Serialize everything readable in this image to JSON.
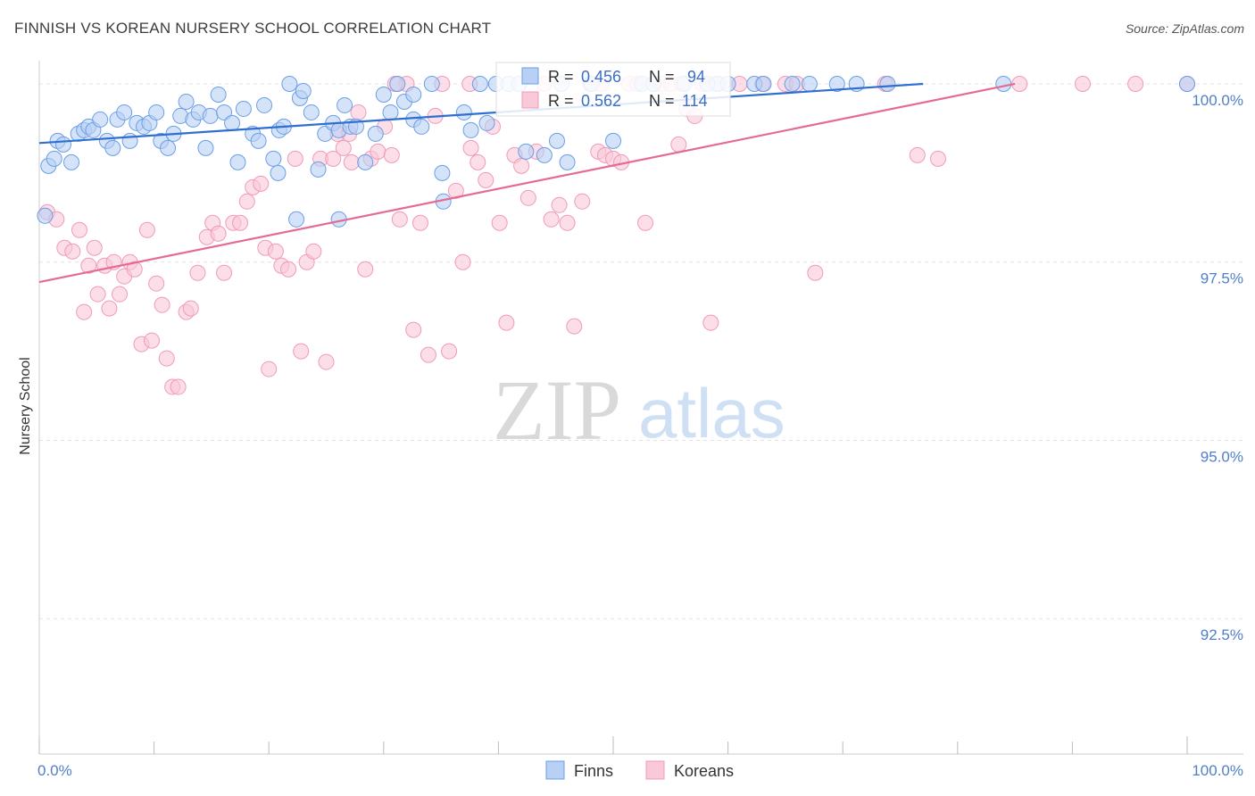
{
  "header": {
    "title": "FINNISH VS KOREAN NURSERY SCHOOL CORRELATION CHART",
    "source": "Source: ZipAtlas.com"
  },
  "watermark": {
    "zip": "ZIP",
    "atlas": "atlas"
  },
  "colors": {
    "finns": "#6a9ee8",
    "finns_line": "#2f6fd1",
    "koreans": "#f19ab8",
    "koreans_line": "#e56a94",
    "grid": "#e3e3e3",
    "axis_label": "#4f7fc9"
  },
  "chart_data": {
    "type": "scatter",
    "title": "FINNISH VS KOREAN NURSERY SCHOOL CORRELATION CHART",
    "xlabel": "",
    "ylabel": "Nursery School",
    "xlim": [
      0,
      100
    ],
    "ylim": [
      90.6,
      100.2
    ],
    "x_tick_labels": [
      "0.0%",
      "100.0%"
    ],
    "y_ticks": [
      {
        "value": 100.0,
        "label": "100.0%"
      },
      {
        "value": 97.5,
        "label": "97.5%"
      },
      {
        "value": 95.0,
        "label": "95.0%"
      },
      {
        "value": 92.5,
        "label": "92.5%"
      }
    ],
    "legend": {
      "finns": {
        "r_label": "R =",
        "r_value": "0.456",
        "n_label": "N =",
        "n_value": "94"
      },
      "koreans": {
        "r_label": "R =",
        "r_value": "0.562",
        "n_label": "N =",
        "n_value": "114"
      }
    },
    "series": [
      {
        "name": "Finns",
        "trend": {
          "x": [
            0,
            77
          ],
          "y": [
            99.17,
            100.0
          ]
        },
        "points": [
          [
            0.5,
            98.15
          ],
          [
            0.8,
            98.85
          ],
          [
            1.3,
            98.95
          ],
          [
            1.6,
            99.2
          ],
          [
            2.1,
            99.15
          ],
          [
            2.8,
            98.9
          ],
          [
            3.4,
            99.3
          ],
          [
            3.9,
            99.35
          ],
          [
            4.3,
            99.4
          ],
          [
            4.7,
            99.35
          ],
          [
            5.3,
            99.5
          ],
          [
            5.9,
            99.2
          ],
          [
            6.4,
            99.1
          ],
          [
            6.8,
            99.5
          ],
          [
            7.4,
            99.6
          ],
          [
            7.9,
            99.2
          ],
          [
            8.5,
            99.45
          ],
          [
            9.1,
            99.4
          ],
          [
            9.6,
            99.45
          ],
          [
            10.2,
            99.6
          ],
          [
            10.6,
            99.2
          ],
          [
            11.2,
            99.1
          ],
          [
            11.7,
            99.3
          ],
          [
            12.3,
            99.55
          ],
          [
            12.8,
            99.75
          ],
          [
            13.4,
            99.5
          ],
          [
            13.9,
            99.6
          ],
          [
            14.5,
            99.1
          ],
          [
            14.9,
            99.55
          ],
          [
            15.6,
            99.85
          ],
          [
            16.1,
            99.6
          ],
          [
            16.8,
            99.45
          ],
          [
            17.3,
            98.9
          ],
          [
            17.8,
            99.65
          ],
          [
            18.6,
            99.3
          ],
          [
            19.1,
            99.2
          ],
          [
            19.6,
            99.7
          ],
          [
            20.4,
            98.95
          ],
          [
            20.9,
            99.35
          ],
          [
            21.3,
            99.4
          ],
          [
            21.8,
            100.0
          ],
          [
            22.7,
            99.8
          ],
          [
            23.0,
            99.9
          ],
          [
            23.7,
            99.6
          ],
          [
            24.3,
            98.8
          ],
          [
            24.9,
            99.3
          ],
          [
            25.6,
            99.45
          ],
          [
            26.1,
            99.35
          ],
          [
            26.6,
            99.7
          ],
          [
            27.1,
            99.4
          ],
          [
            27.6,
            99.4
          ],
          [
            28.4,
            98.9
          ],
          [
            29.3,
            99.3
          ],
          [
            30.0,
            99.85
          ],
          [
            30.6,
            99.6
          ],
          [
            31.2,
            100.0
          ],
          [
            31.8,
            99.75
          ],
          [
            32.6,
            99.5
          ],
          [
            33.3,
            99.4
          ],
          [
            34.2,
            100.0
          ],
          [
            35.1,
            98.75
          ],
          [
            35.2,
            98.35
          ],
          [
            37.0,
            99.6
          ],
          [
            38.4,
            100.0
          ],
          [
            39.0,
            99.45
          ],
          [
            39.8,
            100.0
          ],
          [
            40.9,
            100.0
          ],
          [
            42.4,
            99.05
          ],
          [
            44.0,
            99.0
          ],
          [
            45.1,
            99.2
          ],
          [
            46.0,
            98.9
          ],
          [
            50.0,
            99.2
          ],
          [
            52.5,
            100.0
          ],
          [
            56.2,
            100.0
          ],
          [
            59.0,
            100.0
          ],
          [
            60.0,
            100.0
          ],
          [
            62.3,
            100.0
          ],
          [
            65.6,
            100.0
          ],
          [
            67.1,
            100.0
          ],
          [
            73.9,
            100.0
          ],
          [
            100.0,
            100.0
          ],
          [
            26.1,
            98.1
          ],
          [
            22.4,
            98.1
          ],
          [
            20.8,
            98.75
          ],
          [
            32.6,
            99.85
          ],
          [
            37.6,
            99.35
          ],
          [
            41.8,
            100.0
          ],
          [
            45.5,
            100.0
          ],
          [
            48.1,
            100.0
          ],
          [
            53.5,
            100.0
          ],
          [
            58.2,
            100.0
          ],
          [
            63.1,
            100.0
          ],
          [
            69.5,
            100.0
          ],
          [
            71.2,
            100.0
          ],
          [
            84.0,
            100.0
          ]
        ]
      },
      {
        "name": "Koreans",
        "trend": {
          "x": [
            0,
            85
          ],
          "y": [
            97.22,
            100.0
          ]
        },
        "points": [
          [
            0.7,
            98.2
          ],
          [
            1.5,
            98.1
          ],
          [
            2.2,
            97.7
          ],
          [
            2.9,
            97.65
          ],
          [
            3.5,
            97.95
          ],
          [
            3.9,
            96.8
          ],
          [
            4.3,
            97.45
          ],
          [
            4.8,
            97.7
          ],
          [
            5.1,
            97.05
          ],
          [
            5.7,
            97.45
          ],
          [
            6.1,
            96.85
          ],
          [
            6.5,
            97.5
          ],
          [
            7.0,
            97.05
          ],
          [
            7.4,
            97.3
          ],
          [
            7.9,
            97.5
          ],
          [
            8.3,
            97.4
          ],
          [
            8.9,
            96.35
          ],
          [
            9.4,
            97.95
          ],
          [
            9.8,
            96.4
          ],
          [
            10.2,
            97.2
          ],
          [
            10.7,
            96.9
          ],
          [
            11.1,
            96.15
          ],
          [
            11.6,
            95.75
          ],
          [
            12.1,
            95.75
          ],
          [
            12.8,
            96.8
          ],
          [
            13.2,
            96.85
          ],
          [
            13.8,
            97.35
          ],
          [
            14.6,
            97.85
          ],
          [
            15.1,
            98.05
          ],
          [
            15.6,
            97.9
          ],
          [
            16.1,
            97.35
          ],
          [
            16.9,
            98.05
          ],
          [
            17.5,
            98.05
          ],
          [
            18.1,
            98.35
          ],
          [
            18.6,
            98.55
          ],
          [
            19.3,
            98.6
          ],
          [
            19.7,
            97.7
          ],
          [
            20.0,
            96.0
          ],
          [
            20.6,
            97.65
          ],
          [
            21.1,
            97.45
          ],
          [
            21.7,
            97.4
          ],
          [
            22.3,
            98.95
          ],
          [
            22.8,
            96.25
          ],
          [
            23.3,
            97.5
          ],
          [
            23.9,
            97.65
          ],
          [
            24.5,
            98.95
          ],
          [
            25.0,
            96.1
          ],
          [
            25.6,
            98.95
          ],
          [
            26.0,
            99.3
          ],
          [
            26.5,
            99.1
          ],
          [
            27.2,
            98.9
          ],
          [
            27.8,
            99.6
          ],
          [
            28.4,
            97.4
          ],
          [
            28.9,
            98.95
          ],
          [
            29.5,
            99.05
          ],
          [
            30.1,
            99.4
          ],
          [
            30.7,
            99.0
          ],
          [
            31.4,
            98.1
          ],
          [
            32.0,
            100.0
          ],
          [
            32.6,
            96.55
          ],
          [
            33.2,
            98.05
          ],
          [
            33.9,
            96.2
          ],
          [
            34.5,
            99.55
          ],
          [
            35.1,
            100.0
          ],
          [
            35.7,
            96.25
          ],
          [
            36.3,
            98.5
          ],
          [
            36.9,
            97.5
          ],
          [
            37.6,
            99.1
          ],
          [
            38.2,
            98.9
          ],
          [
            38.9,
            98.65
          ],
          [
            39.5,
            99.4
          ],
          [
            40.1,
            98.05
          ],
          [
            40.7,
            96.65
          ],
          [
            41.4,
            99.0
          ],
          [
            42.0,
            98.85
          ],
          [
            42.6,
            98.4
          ],
          [
            43.3,
            99.05
          ],
          [
            44.0,
            100.0
          ],
          [
            44.6,
            98.1
          ],
          [
            45.3,
            98.3
          ],
          [
            46.0,
            98.05
          ],
          [
            46.6,
            96.6
          ],
          [
            47.3,
            98.35
          ],
          [
            48.0,
            100.0
          ],
          [
            48.7,
            99.05
          ],
          [
            49.3,
            99.0
          ],
          [
            50.0,
            98.95
          ],
          [
            50.7,
            98.9
          ],
          [
            51.4,
            100.0
          ],
          [
            52.1,
            100.0
          ],
          [
            52.8,
            98.05
          ],
          [
            53.5,
            100.0
          ],
          [
            54.2,
            100.0
          ],
          [
            55.0,
            100.0
          ],
          [
            55.7,
            99.15
          ],
          [
            56.4,
            99.65
          ],
          [
            57.1,
            99.55
          ],
          [
            57.8,
            100.0
          ],
          [
            58.5,
            96.65
          ],
          [
            59.2,
            100.0
          ],
          [
            61.0,
            100.0
          ],
          [
            63.0,
            100.0
          ],
          [
            65.0,
            100.0
          ],
          [
            66.0,
            100.0
          ],
          [
            67.6,
            97.35
          ],
          [
            73.7,
            100.0
          ],
          [
            76.5,
            99.0
          ],
          [
            78.3,
            98.95
          ],
          [
            85.4,
            100.0
          ],
          [
            90.9,
            100.0
          ],
          [
            100.0,
            100.0
          ],
          [
            95.5,
            100.0
          ],
          [
            56.0,
            100.0
          ],
          [
            49.0,
            100.0
          ],
          [
            37.5,
            100.0
          ],
          [
            31.0,
            100.0
          ],
          [
            27.0,
            99.3
          ]
        ]
      }
    ]
  },
  "bottom_legend": {
    "finns": "Finns",
    "koreans": "Koreans"
  }
}
